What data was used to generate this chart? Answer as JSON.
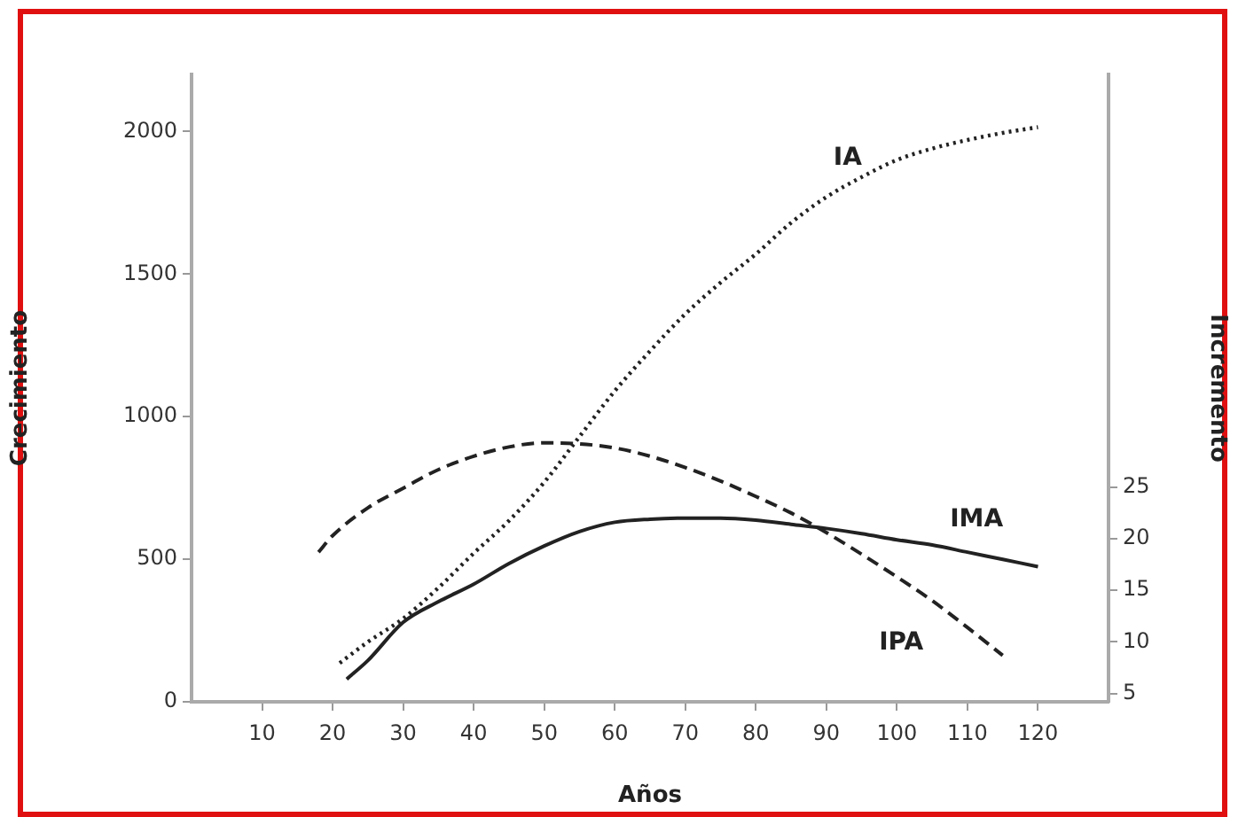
{
  "chart_data": {
    "type": "line",
    "xlabel": "Años",
    "ylabel": "Crecimiento",
    "y2label": "Incremento",
    "xlim": [
      0,
      130
    ],
    "xticks": [
      10,
      20,
      30,
      40,
      50,
      60,
      70,
      80,
      90,
      100,
      110,
      120
    ],
    "ylim": [
      0,
      2200
    ],
    "yticks": [
      0,
      500,
      1000,
      1500,
      2000
    ],
    "y2lim": [
      4.2,
      65
    ],
    "y2ticks": [
      5,
      10,
      15,
      20,
      25
    ],
    "grid": false,
    "legend": false,
    "marker": "none",
    "series": [
      {
        "name": "IA",
        "color": "#222222",
        "line_style": "dotted",
        "x": [
          21,
          25,
          30,
          35,
          40,
          45,
          50,
          55,
          60,
          65,
          70,
          75,
          80,
          85,
          90,
          95,
          100,
          105,
          110,
          115,
          120
        ],
        "values": [
          136,
          210,
          292,
          400,
          521,
          635,
          770,
          930,
          1090,
          1230,
          1360,
          1470,
          1570,
          1680,
          1770,
          1840,
          1900,
          1940,
          1970,
          1995,
          2015
        ]
      },
      {
        "name": "IMA",
        "color": "#222222",
        "line_style": "solid",
        "axis": "y2",
        "x": [
          22,
          25,
          30,
          35,
          40,
          45,
          50,
          55,
          60,
          65,
          70,
          75,
          80,
          85,
          90,
          95,
          100,
          105,
          110,
          115,
          120
        ],
        "values": [
          6.4,
          8.2,
          11.9,
          13.9,
          15.6,
          17.6,
          19.3,
          20.7,
          21.6,
          21.9,
          22.0,
          22.0,
          21.8,
          21.4,
          21.0,
          20.5,
          19.9,
          19.4,
          18.7,
          18.0,
          17.3
        ]
      },
      {
        "name": "IPA",
        "color": "#222222",
        "line_style": "dashed",
        "axis": "y2",
        "x": [
          18,
          20,
          25,
          30,
          35,
          40,
          45,
          50,
          55,
          60,
          65,
          70,
          75,
          80,
          85,
          90,
          95,
          100,
          105,
          110,
          115
        ],
        "values": [
          18.7,
          20.3,
          23.0,
          24.9,
          26.7,
          28.0,
          28.9,
          29.3,
          29.2,
          28.8,
          28.0,
          26.9,
          25.6,
          24.1,
          22.5,
          20.6,
          18.5,
          16.3,
          14.0,
          11.4,
          8.7
        ]
      }
    ]
  }
}
